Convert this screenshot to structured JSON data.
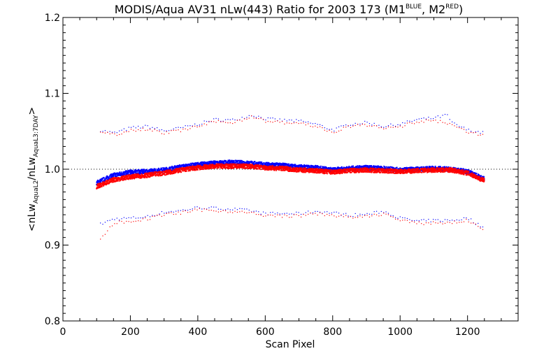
{
  "chart_data": {
    "type": "scatter",
    "title": "MODIS/Aqua AV31 nLw(443) Ratio for 2003 173 (M1",
    "title_sup_1": "BLUE",
    "title_mid": ", M2",
    "title_sup_2": "RED",
    "title_end": ")",
    "xlabel": "Scan Pixel",
    "ylabel_prefix": "<nLw",
    "ylabel_sub_1": "AquaL2",
    "ylabel_mid": "/nLw",
    "ylabel_sub_2": "AquaL3:7DAY",
    "ylabel_suffix": ">",
    "xlim": [
      0,
      1350
    ],
    "ylim": [
      0.8,
      1.2
    ],
    "x_ticks": [
      0,
      200,
      400,
      600,
      800,
      1000,
      1200
    ],
    "x_tick_labels": [
      "0",
      "200",
      "400",
      "600",
      "800",
      "1000",
      "1200"
    ],
    "y_ticks": [
      0.8,
      0.9,
      1.0,
      1.1,
      1.2
    ],
    "y_tick_labels": [
      "0.8",
      "0.9",
      "1.0",
      "1.1",
      "1.2"
    ],
    "reference_line": 1.0,
    "grid": false,
    "series_colors": {
      "M1": "#0000ff",
      "M2": "#ff0000"
    },
    "x_range": [
      100,
      1250
    ],
    "series": [
      {
        "key": "M1",
        "color": "#0000ff",
        "mean_x": [
          100,
          150,
          200,
          250,
          300,
          350,
          400,
          450,
          500,
          550,
          600,
          650,
          700,
          750,
          800,
          850,
          900,
          950,
          1000,
          1050,
          1100,
          1150,
          1200,
          1250
        ],
        "mean_y": [
          0.982,
          0.992,
          0.996,
          0.997,
          0.999,
          1.003,
          1.006,
          1.008,
          1.009,
          1.008,
          1.006,
          1.005,
          1.003,
          1.002,
          0.999,
          1.001,
          1.002,
          1.001,
          0.999,
          1.0,
          1.001,
          1.0,
          0.997,
          0.987
        ],
        "upper_x": [
          110,
          150,
          200,
          250,
          300,
          350,
          400,
          450,
          500,
          560,
          600,
          650,
          700,
          750,
          800,
          850,
          900,
          950,
          1000,
          1050,
          1100,
          1140,
          1150,
          1200,
          1250
        ],
        "upper_y": [
          1.052,
          1.048,
          1.055,
          1.057,
          1.051,
          1.055,
          1.06,
          1.066,
          1.065,
          1.072,
          1.067,
          1.065,
          1.064,
          1.06,
          1.052,
          1.06,
          1.062,
          1.057,
          1.06,
          1.066,
          1.068,
          1.072,
          1.062,
          1.052,
          1.048
        ],
        "lower_x": [
          110,
          150,
          200,
          250,
          300,
          350,
          400,
          450,
          500,
          550,
          600,
          650,
          700,
          750,
          800,
          850,
          900,
          950,
          1000,
          1050,
          1100,
          1150,
          1200,
          1250
        ],
        "lower_y": [
          0.928,
          0.935,
          0.936,
          0.938,
          0.944,
          0.946,
          0.95,
          0.949,
          0.948,
          0.946,
          0.942,
          0.942,
          0.942,
          0.945,
          0.943,
          0.94,
          0.941,
          0.945,
          0.936,
          0.932,
          0.933,
          0.933,
          0.936,
          0.922
        ]
      },
      {
        "key": "M2",
        "color": "#ff0000",
        "mean_x": [
          100,
          150,
          200,
          250,
          300,
          350,
          400,
          450,
          500,
          550,
          600,
          650,
          700,
          750,
          800,
          850,
          900,
          950,
          1000,
          1050,
          1100,
          1150,
          1200,
          1250
        ],
        "mean_y": [
          0.977,
          0.986,
          0.99,
          0.992,
          0.995,
          0.999,
          1.002,
          1.004,
          1.004,
          1.004,
          1.002,
          1.001,
          0.999,
          0.998,
          0.996,
          0.998,
          0.999,
          0.998,
          0.997,
          0.998,
          0.999,
          0.999,
          0.995,
          0.985
        ],
        "upper_x": [
          110,
          150,
          200,
          250,
          300,
          350,
          400,
          450,
          500,
          560,
          600,
          650,
          700,
          750,
          800,
          850,
          900,
          950,
          1000,
          1050,
          1100,
          1150,
          1200,
          1250
        ],
        "upper_y": [
          1.05,
          1.046,
          1.052,
          1.054,
          1.048,
          1.052,
          1.057,
          1.063,
          1.062,
          1.07,
          1.064,
          1.062,
          1.061,
          1.057,
          1.049,
          1.057,
          1.059,
          1.054,
          1.057,
          1.063,
          1.065,
          1.059,
          1.049,
          1.046
        ],
        "lower_x": [
          110,
          150,
          200,
          250,
          300,
          350,
          400,
          450,
          500,
          550,
          600,
          650,
          700,
          750,
          800,
          850,
          900,
          950,
          1000,
          1050,
          1100,
          1150,
          1200,
          1250
        ],
        "lower_y": [
          0.908,
          0.93,
          0.932,
          0.935,
          0.941,
          0.943,
          0.947,
          0.946,
          0.945,
          0.943,
          0.939,
          0.939,
          0.939,
          0.942,
          0.94,
          0.937,
          0.938,
          0.942,
          0.933,
          0.929,
          0.93,
          0.93,
          0.933,
          0.92
        ]
      }
    ]
  }
}
